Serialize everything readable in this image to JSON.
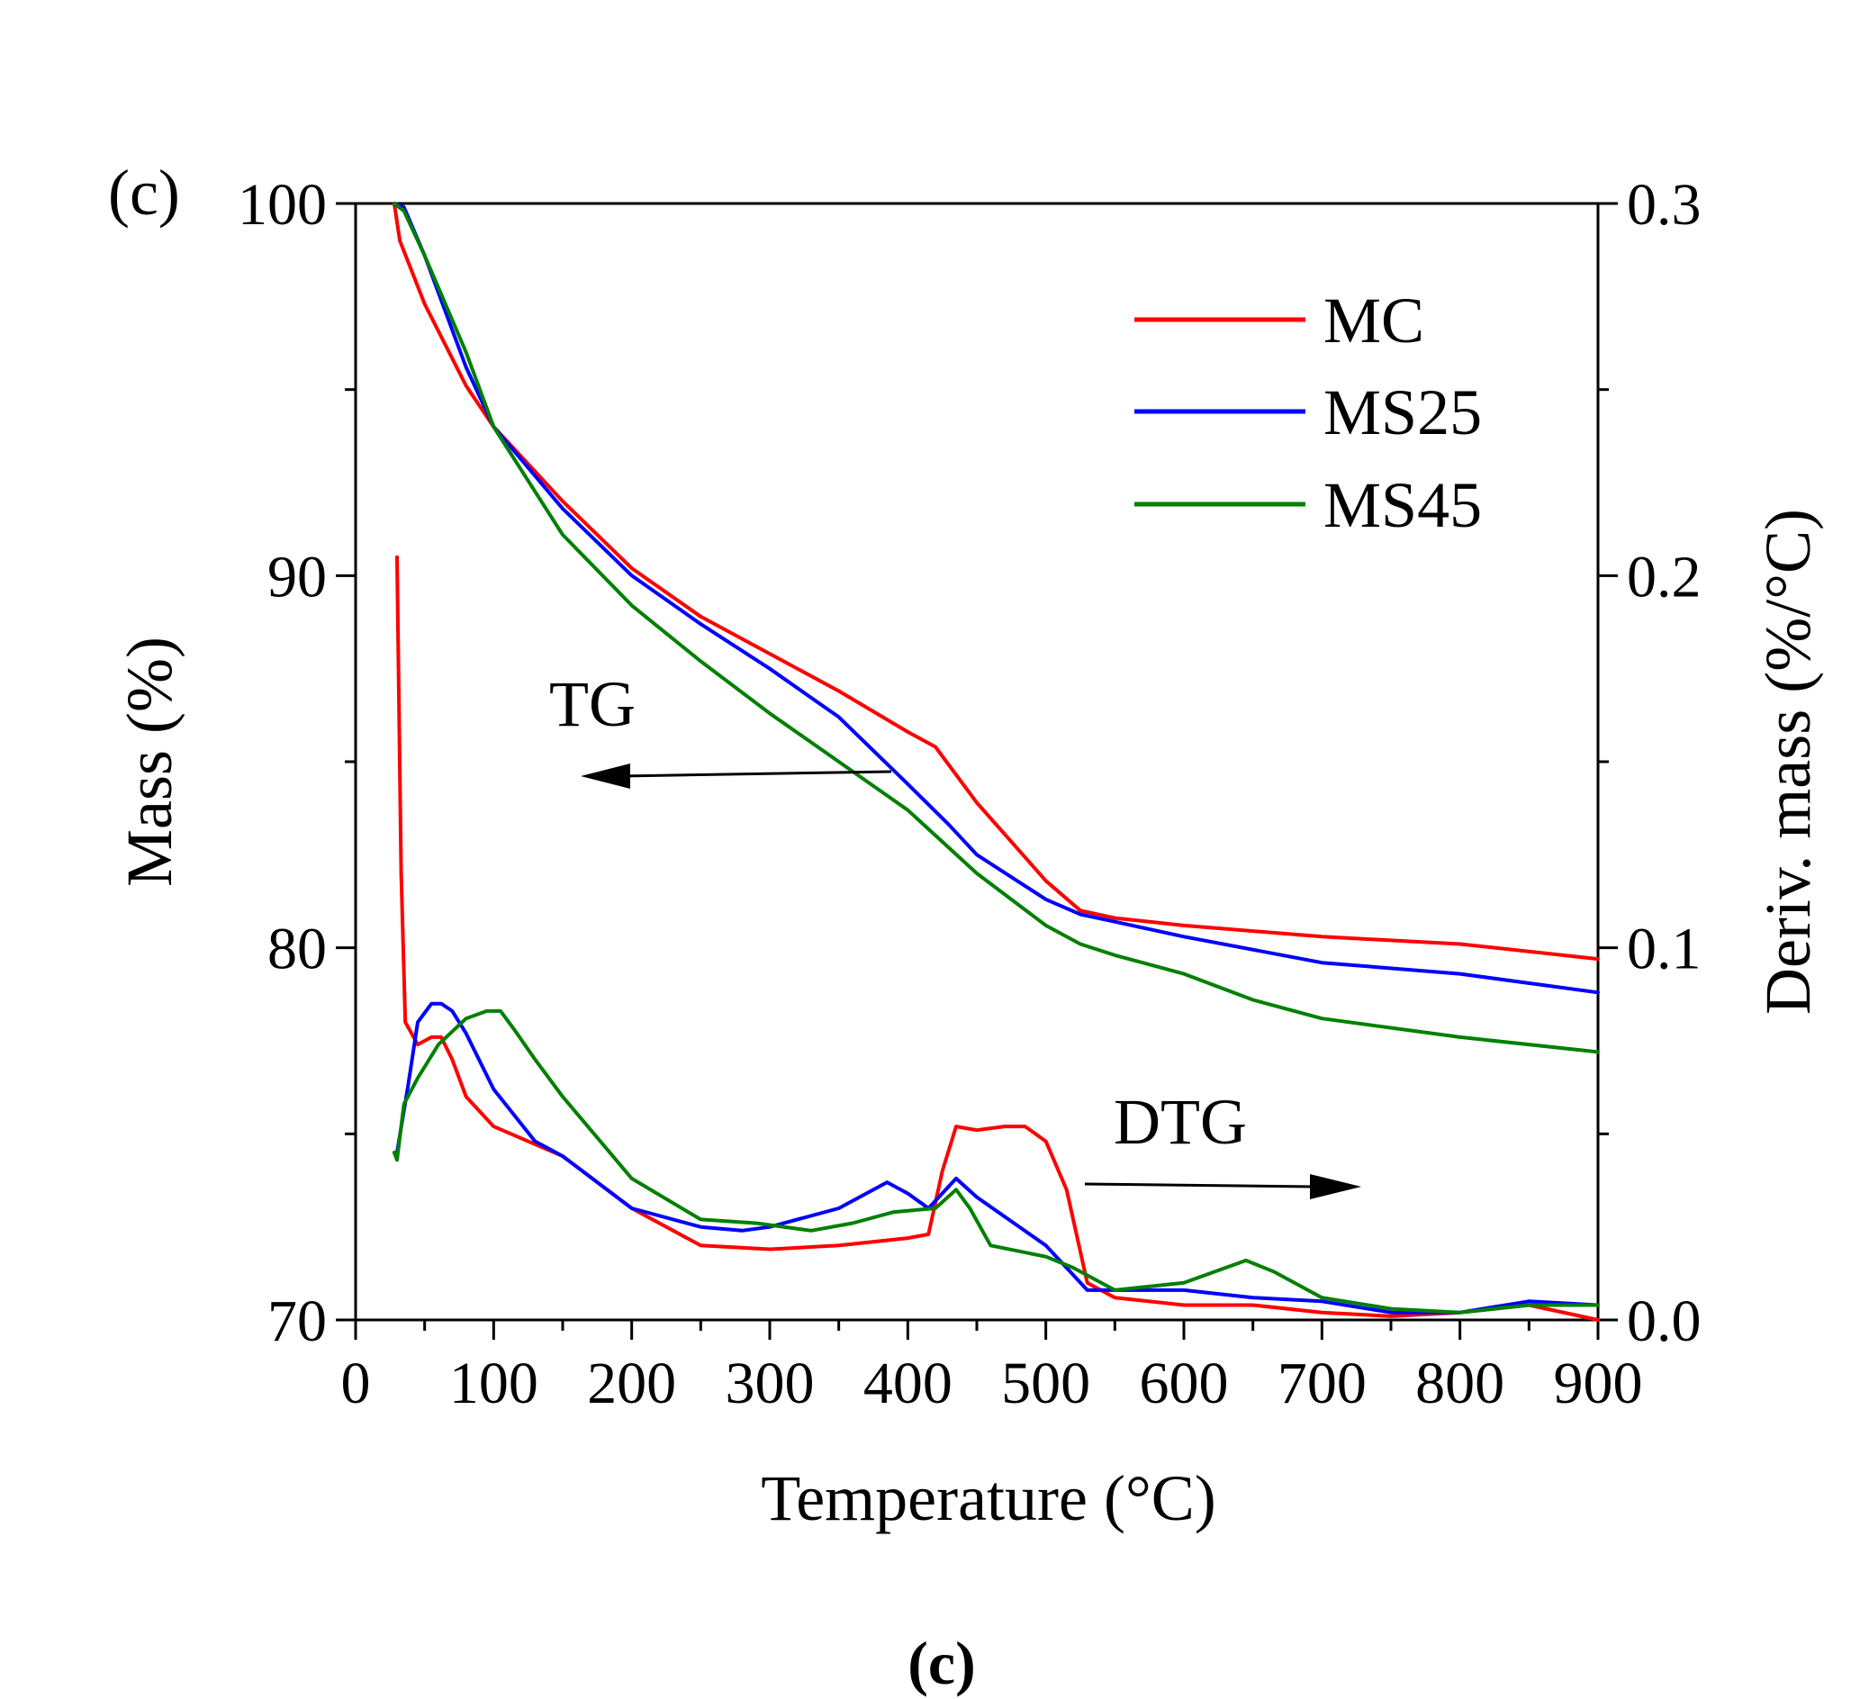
{
  "chart_data": {
    "type": "line",
    "panel_label": "(c)",
    "caption": "(c)",
    "xlabel": "Temperature (°C)",
    "ylabel_left": "Mass (%)",
    "ylabel_right": "Deriv. mass (%/°C)",
    "xlim": [
      0,
      900
    ],
    "ylim_left": [
      70,
      100
    ],
    "ylim_right": [
      0.0,
      0.3
    ],
    "x_ticks": [
      "0",
      "100",
      "200",
      "300",
      "400",
      "500",
      "600",
      "700",
      "800",
      "900"
    ],
    "y_left_ticks": [
      "70",
      "80",
      "90",
      "100"
    ],
    "y_right_ticks": [
      "0.0",
      "0.1",
      "0.2",
      "0.3"
    ],
    "legend": {
      "position": "top-right",
      "entries": [
        {
          "name": "MC",
          "color": "#ff0000"
        },
        {
          "name": "MS25",
          "color": "#0000ff"
        },
        {
          "name": "MS45",
          "color": "#008000"
        }
      ]
    },
    "annotations": [
      {
        "text": "TG",
        "arrow": "left"
      },
      {
        "text": "DTG",
        "arrow": "right"
      }
    ],
    "series": [
      {
        "name": "MC",
        "kind": "TG",
        "axis": "left",
        "color": "#ff0000",
        "x": [
          28,
          32,
          50,
          80,
          100,
          150,
          200,
          250,
          300,
          350,
          400,
          420,
          450,
          500,
          525,
          550,
          600,
          700,
          800,
          900
        ],
        "y": [
          100,
          99.0,
          97.3,
          95.1,
          94.0,
          92.0,
          90.2,
          88.9,
          87.9,
          86.9,
          85.8,
          85.4,
          83.9,
          81.8,
          81.0,
          80.8,
          80.6,
          80.3,
          80.1,
          79.7
        ]
      },
      {
        "name": "MS25",
        "kind": "TG",
        "axis": "left",
        "color": "#0000ff",
        "x": [
          28,
          35,
          50,
          80,
          100,
          150,
          200,
          250,
          300,
          350,
          400,
          430,
          450,
          500,
          525,
          550,
          600,
          700,
          800,
          900
        ],
        "y": [
          100,
          99.9,
          98.6,
          95.6,
          94.0,
          91.8,
          90.0,
          88.7,
          87.5,
          86.2,
          84.4,
          83.3,
          82.5,
          81.3,
          80.9,
          80.7,
          80.3,
          79.6,
          79.3,
          78.8
        ]
      },
      {
        "name": "MS45",
        "kind": "TG",
        "axis": "left",
        "color": "#008000",
        "x": [
          28,
          35,
          50,
          80,
          100,
          150,
          200,
          250,
          300,
          350,
          400,
          450,
          500,
          525,
          550,
          600,
          650,
          700,
          800,
          900
        ],
        "y": [
          100,
          99.8,
          98.6,
          96.0,
          94.0,
          91.1,
          89.2,
          87.7,
          86.3,
          85.0,
          83.7,
          82.0,
          80.6,
          80.1,
          79.8,
          79.3,
          78.6,
          78.1,
          77.6,
          77.2
        ]
      },
      {
        "name": "MC",
        "kind": "DTG",
        "axis": "right",
        "color": "#ff0000",
        "x": [
          30,
          33,
          36,
          45,
          55,
          62,
          70,
          80,
          100,
          150,
          200,
          250,
          300,
          350,
          400,
          415,
          425,
          435,
          450,
          470,
          485,
          500,
          515,
          530,
          550,
          600,
          650,
          700,
          750,
          800,
          850,
          900
        ],
        "y": [
          0.205,
          0.12,
          0.08,
          0.074,
          0.076,
          0.076,
          0.07,
          0.06,
          0.052,
          0.044,
          0.03,
          0.02,
          0.019,
          0.02,
          0.022,
          0.023,
          0.04,
          0.052,
          0.051,
          0.052,
          0.052,
          0.048,
          0.035,
          0.01,
          0.006,
          0.004,
          0.004,
          0.002,
          0.001,
          0.002,
          0.004,
          0.0
        ]
      },
      {
        "name": "MS25",
        "kind": "DTG",
        "axis": "right",
        "color": "#0000ff",
        "x": [
          30,
          38,
          45,
          55,
          62,
          70,
          80,
          100,
          130,
          150,
          200,
          250,
          280,
          300,
          350,
          385,
          400,
          415,
          435,
          450,
          500,
          530,
          550,
          600,
          650,
          700,
          750,
          800,
          850,
          900
        ],
        "y": [
          0.045,
          0.063,
          0.08,
          0.085,
          0.085,
          0.083,
          0.077,
          0.062,
          0.048,
          0.044,
          0.03,
          0.025,
          0.024,
          0.025,
          0.03,
          0.037,
          0.034,
          0.03,
          0.038,
          0.033,
          0.02,
          0.008,
          0.008,
          0.008,
          0.006,
          0.005,
          0.002,
          0.002,
          0.005,
          0.004
        ]
      },
      {
        "name": "MS45",
        "kind": "DTG",
        "axis": "right",
        "color": "#008000",
        "x": [
          28,
          30,
          35,
          45,
          60,
          80,
          95,
          105,
          115,
          130,
          150,
          200,
          250,
          290,
          330,
          360,
          390,
          420,
          435,
          445,
          460,
          500,
          520,
          550,
          600,
          645,
          665,
          700,
          750,
          800,
          850,
          900
        ],
        "y": [
          0.045,
          0.043,
          0.058,
          0.065,
          0.074,
          0.081,
          0.083,
          0.083,
          0.078,
          0.07,
          0.06,
          0.038,
          0.027,
          0.026,
          0.024,
          0.026,
          0.029,
          0.03,
          0.035,
          0.03,
          0.02,
          0.017,
          0.014,
          0.008,
          0.01,
          0.016,
          0.013,
          0.006,
          0.003,
          0.002,
          0.004,
          0.004
        ]
      }
    ]
  }
}
